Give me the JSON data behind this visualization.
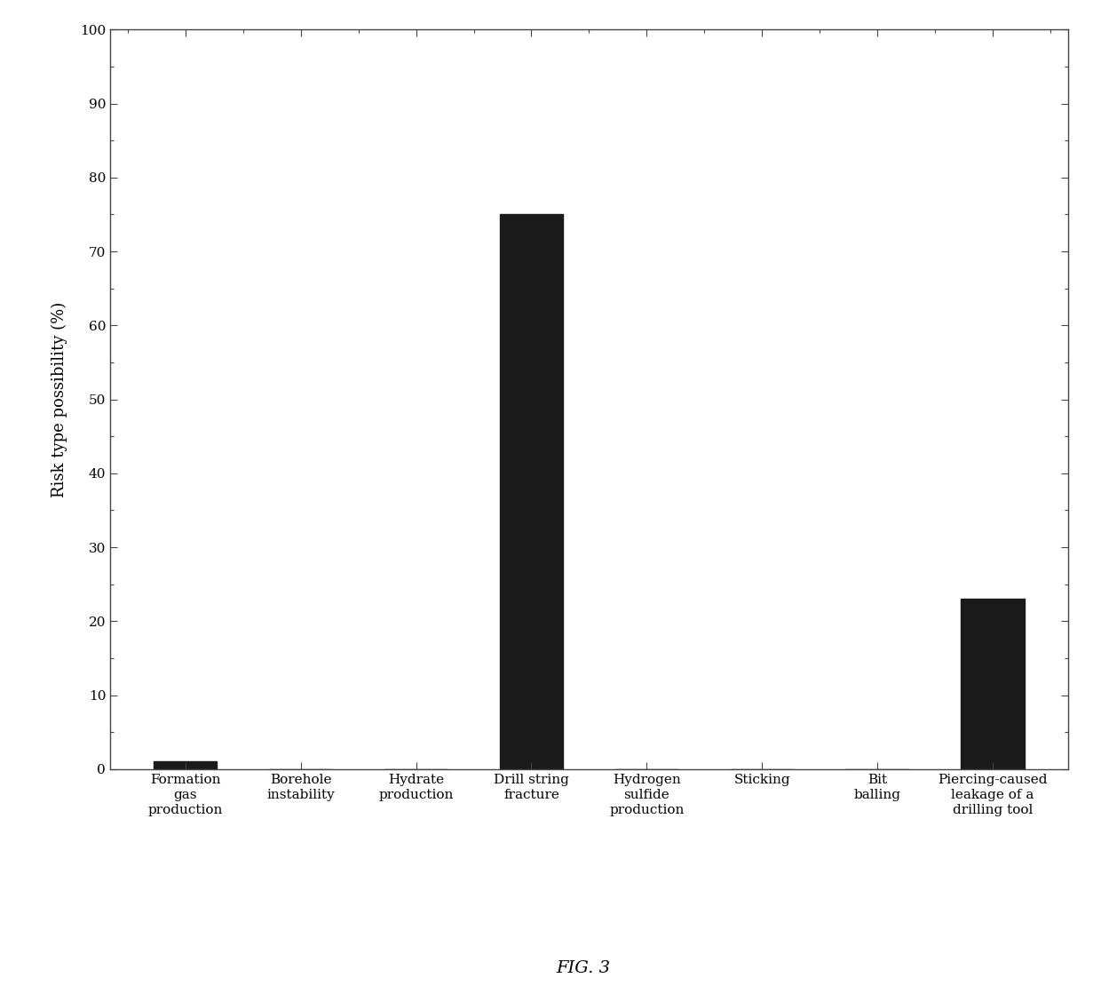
{
  "categories": [
    "Formation\ngas\nproduction",
    "Borehole\ninstability",
    "Hydrate\nproduction",
    "Drill string\nfracture",
    "Hydrogen\nsulfide\nproduction",
    "Sticking",
    "Bit\nballing",
    "Piercing-caused\nleakage of a\ndrilling tool"
  ],
  "values": [
    1.0,
    0.0,
    0.0,
    75.0,
    0.0,
    0.0,
    0.0,
    23.0
  ],
  "bar_color": "#1a1a1a",
  "ylabel": "Risk type possibility (%)",
  "ylim": [
    0,
    100
  ],
  "yticks": [
    0,
    10,
    20,
    30,
    40,
    50,
    60,
    70,
    80,
    90,
    100
  ],
  "caption": "FIG. 3",
  "background_color": "#ffffff",
  "axis_fontsize": 13,
  "tick_fontsize": 11,
  "caption_fontsize": 14,
  "bar_width": 0.55
}
